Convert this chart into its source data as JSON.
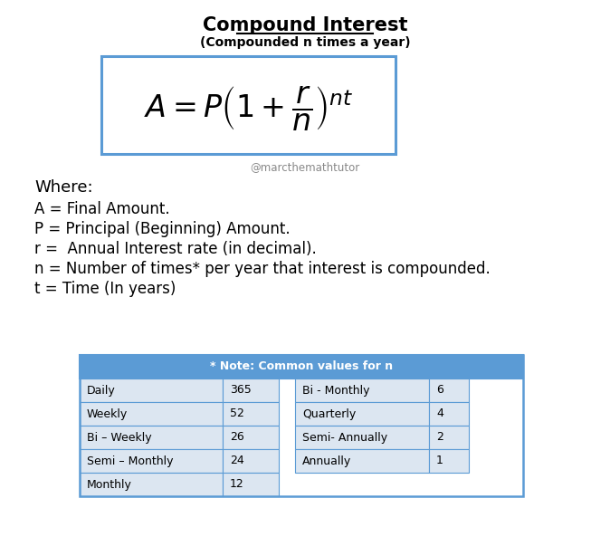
{
  "title": "Compound Interest",
  "subtitle": "(Compounded n times a year)",
  "watermark": "@marcthemathtutor",
  "where_lines": [
    "Where:",
    "A = Final Amount.",
    "P = Principal (Beginning) Amount.",
    "r =  Annual Interest rate (in decimal).",
    "n = Number of times* per year that interest is compounded.",
    "t = Time (In years)"
  ],
  "table_header": "* Note: Common values for n",
  "table_header_color": "#5b9bd5",
  "table_bg_color": "#dce6f1",
  "table_border_color": "#5b9bd5",
  "table_left": [
    [
      "Daily",
      "365"
    ],
    [
      "Weekly",
      "52"
    ],
    [
      "Bi – Weekly",
      "26"
    ],
    [
      "Semi – Monthly",
      "24"
    ],
    [
      "Monthly",
      "12"
    ]
  ],
  "table_right": [
    [
      "Bi - Monthly",
      "6"
    ],
    [
      "Quarterly",
      "4"
    ],
    [
      "Semi- Annually",
      "2"
    ],
    [
      "Annually",
      "1"
    ]
  ],
  "formula_box_color": "#5b9bd5",
  "formula_box_fill": "#ffffff",
  "bg_color": "#ffffff",
  "title_color": "#000000",
  "text_color": "#000000",
  "watermark_color": "#888888"
}
